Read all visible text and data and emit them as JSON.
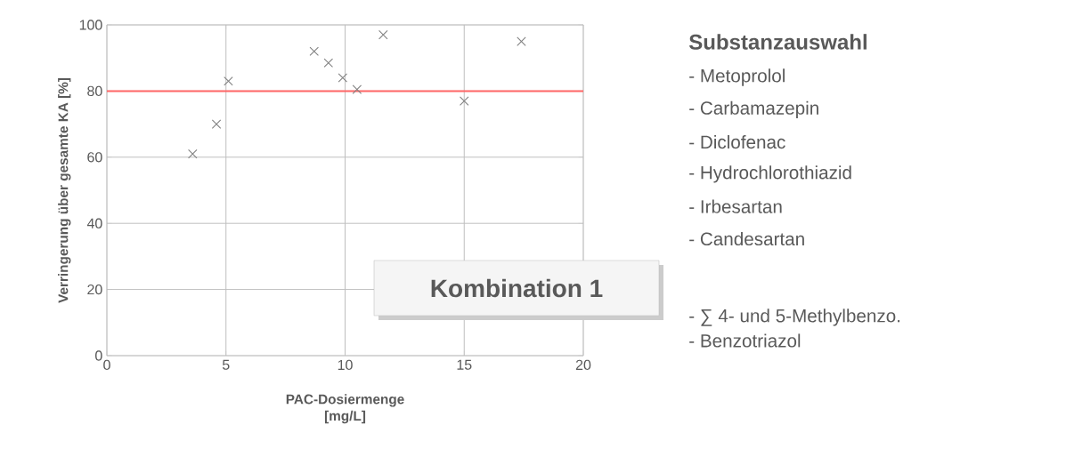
{
  "chart_data": {
    "type": "scatter",
    "xlabel": "PAC-Dosiermenge [mg/L]",
    "ylabel": "Verringerung über gesamte KA [%]",
    "x": [
      3.6,
      4.6,
      5.1,
      8.7,
      9.3,
      9.9,
      10.5,
      11.6,
      15.0,
      17.4
    ],
    "values": [
      61,
      70,
      83,
      92,
      88.5,
      84,
      80.5,
      97,
      77,
      95
    ],
    "color": "#808080",
    "marker": "cross",
    "xlim": [
      0,
      20
    ],
    "xticks": [
      0,
      5,
      10,
      15,
      20
    ],
    "ylim": [
      0,
      100
    ],
    "yticks": [
      0,
      20,
      40,
      60,
      80,
      100
    ],
    "grid": true,
    "ref_lines": [
      {
        "axis": "y",
        "value": 80,
        "color": "#ff6666"
      }
    ],
    "annotations": [
      "Kombination 1",
      "Substanzauswahl",
      "- Metoprolol",
      "- Carbamazepin",
      "- Diclofenac",
      "- Hydrochlorothiazid",
      "- Irbesartan",
      "- Candesartan",
      "- ∑ 4- und 5-Methylbenzo.",
      "- Benzotriazol"
    ]
  }
}
